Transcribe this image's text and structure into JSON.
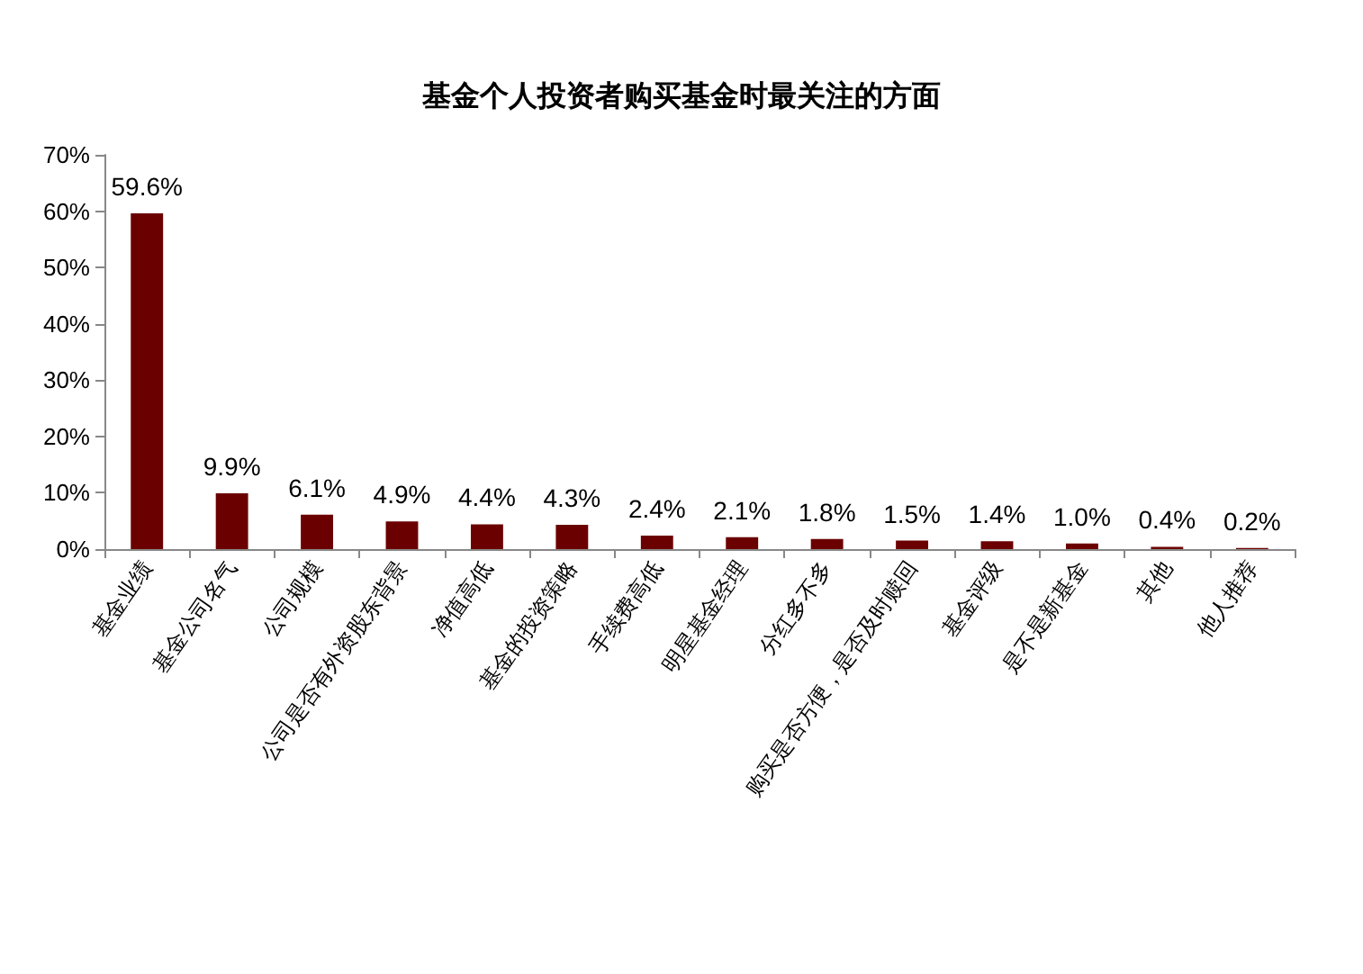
{
  "chart_data": {
    "type": "bar",
    "title": "基金个人投资者购买基金时最关注的方面",
    "categories": [
      "基金业绩",
      "基金公司名气",
      "公司规模",
      "公司是否有外资股东背景",
      "净值高低",
      "基金的投资策略",
      "手续费高低",
      "明星基金经理",
      "分红多不多",
      "购买是否方便，是否及时赎回",
      "基金评级",
      "是不是新基金",
      "其他",
      "他人推荐"
    ],
    "values": [
      59.6,
      9.9,
      6.1,
      4.9,
      4.4,
      4.3,
      2.4,
      2.1,
      1.8,
      1.5,
      1.4,
      1.0,
      0.4,
      0.2
    ],
    "value_labels": [
      "59.6%",
      "9.9%",
      "6.1%",
      "4.9%",
      "4.4%",
      "4.3%",
      "2.4%",
      "2.1%",
      "1.8%",
      "1.5%",
      "1.4%",
      "1.0%",
      "0.4%",
      "0.2%"
    ],
    "color": "#6b0000",
    "ylim": [
      0,
      70
    ],
    "yticks": [
      {
        "value": 0,
        "label": "0%"
      },
      {
        "value": 10,
        "label": "10%"
      },
      {
        "value": 20,
        "label": "20%"
      },
      {
        "value": 30,
        "label": "30%"
      },
      {
        "value": 40,
        "label": "40%"
      },
      {
        "value": 50,
        "label": "50%"
      },
      {
        "value": 60,
        "label": "60%"
      },
      {
        "value": 70,
        "label": "70%"
      }
    ],
    "tick_labels": true
  }
}
